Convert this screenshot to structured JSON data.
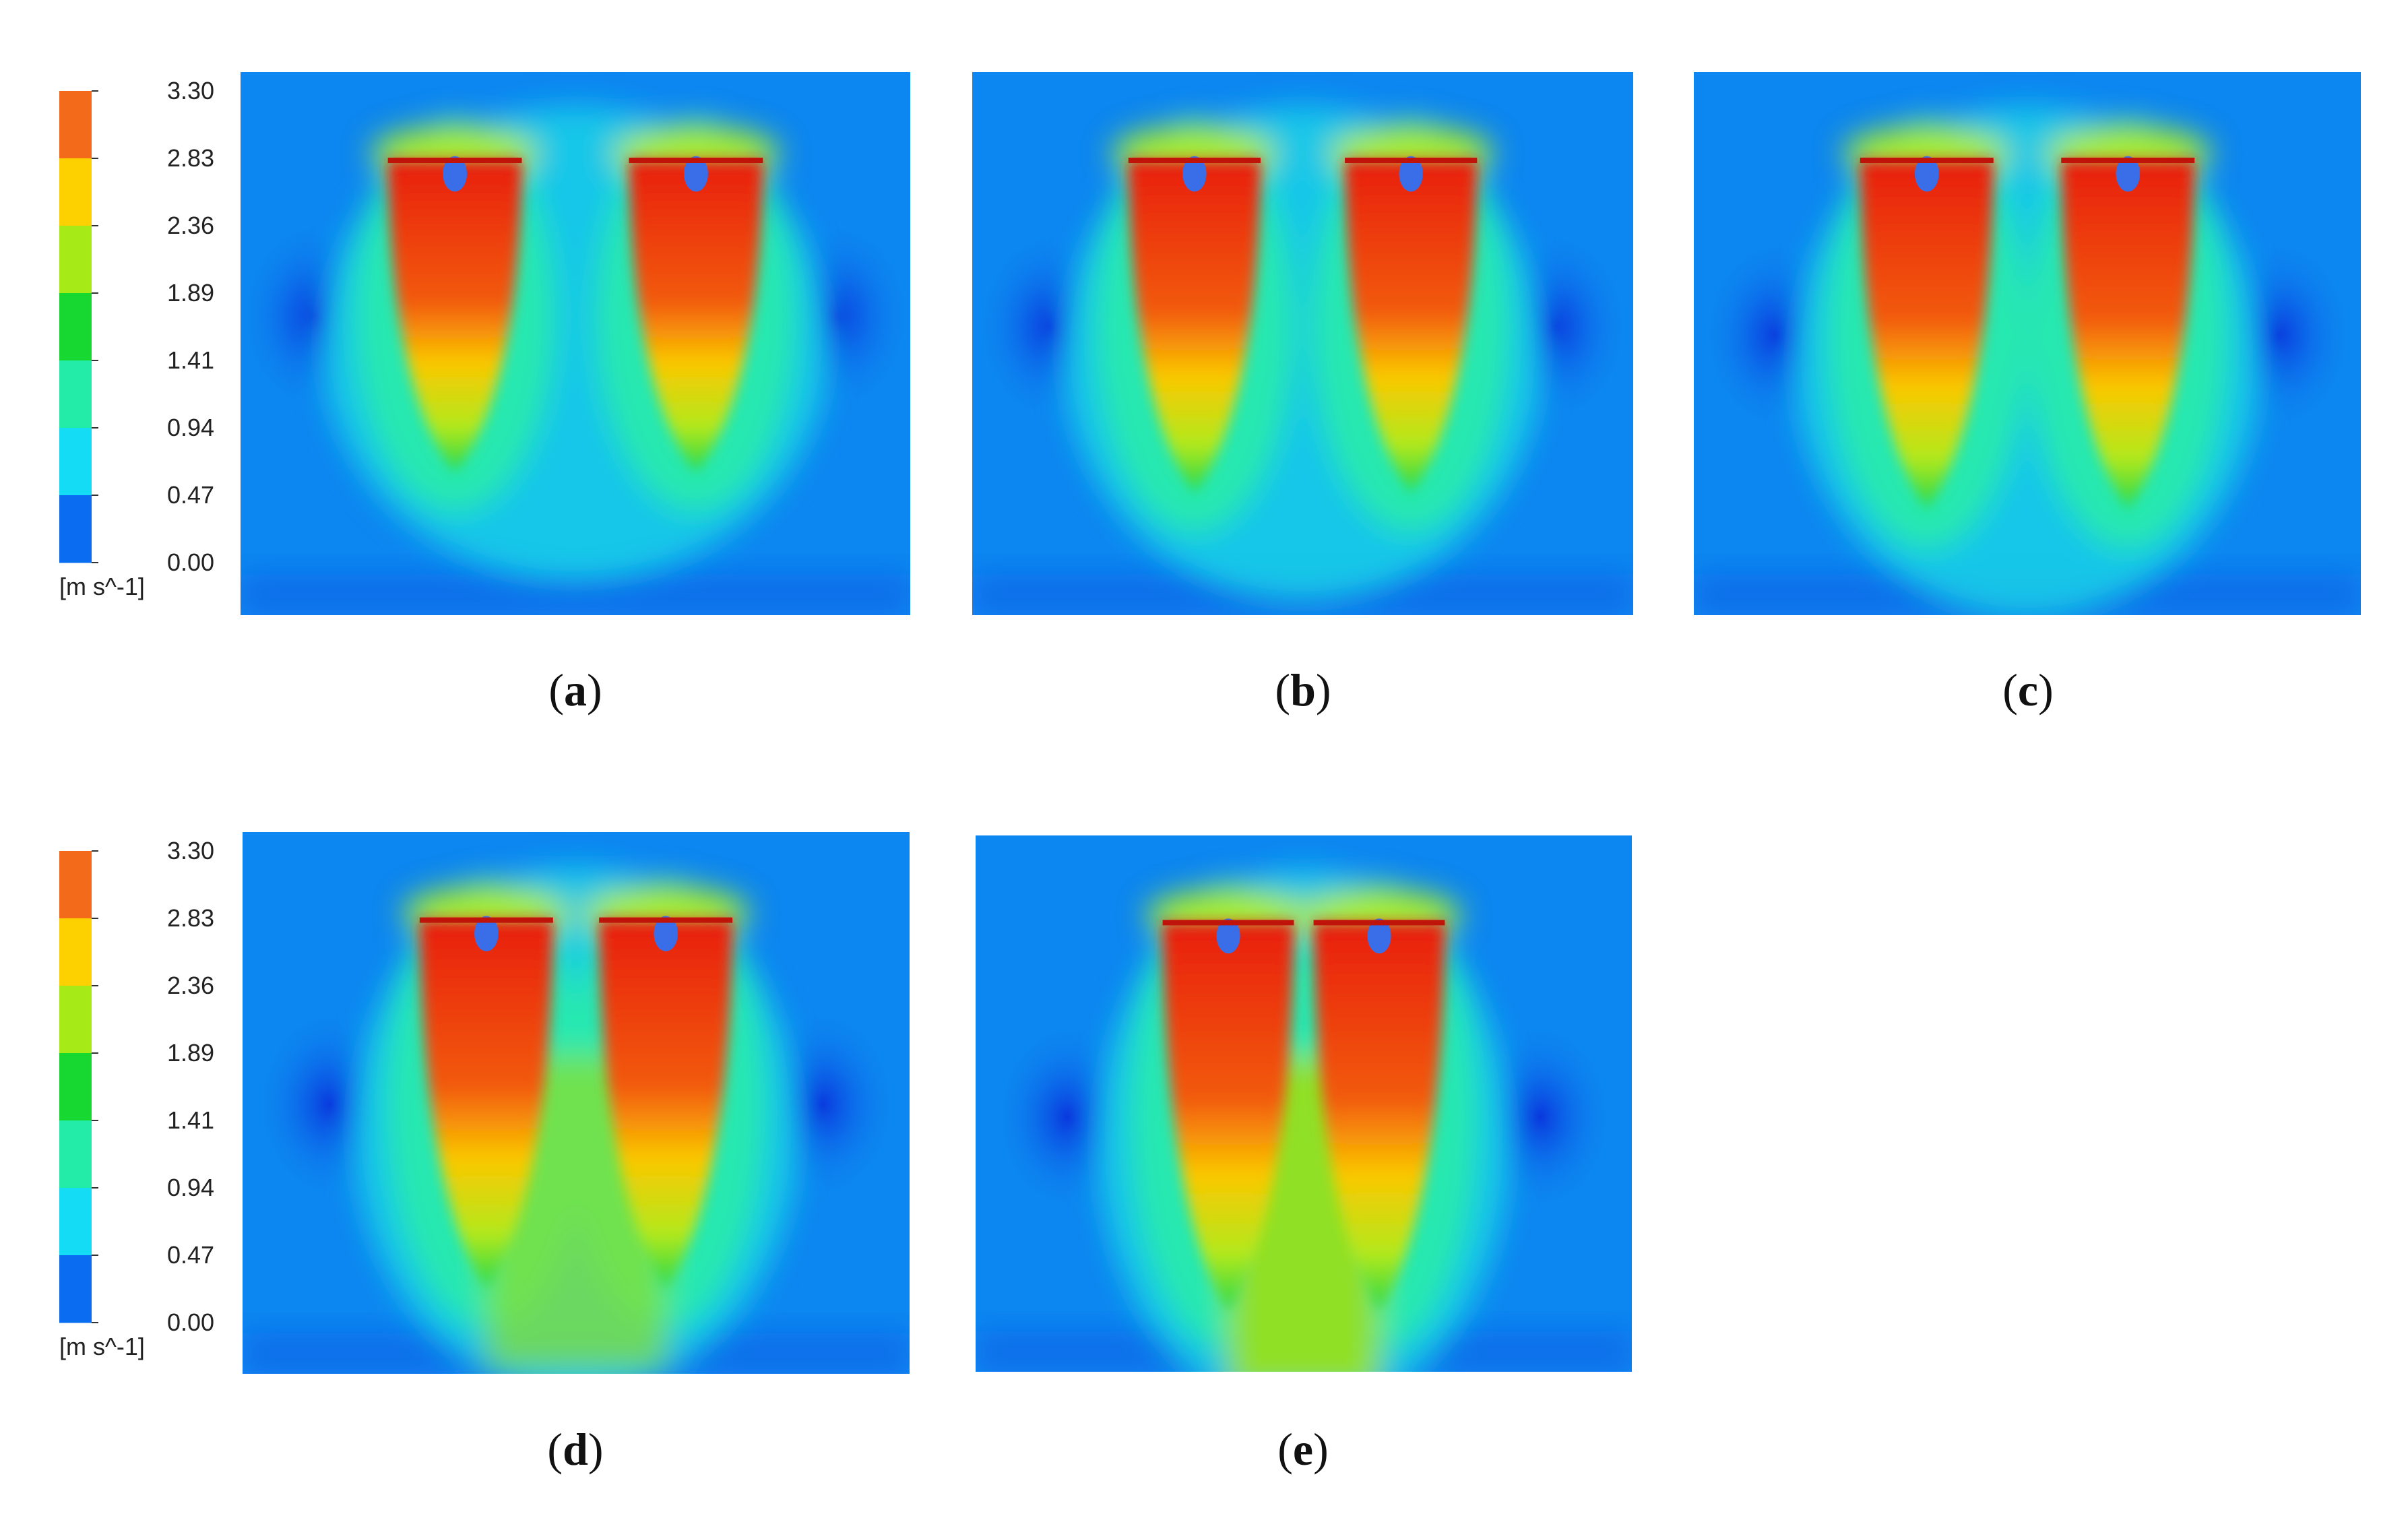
{
  "colorbar": {
    "ticks": [
      "3.30",
      "2.83",
      "2.36",
      "1.89",
      "1.41",
      "0.94",
      "0.47",
      "0.00"
    ],
    "unit": "[m s^-1]",
    "colors_top_to_bottom": [
      "#f26a1a",
      "#fdd000",
      "#a6ea18",
      "#16d830",
      "#22eca8",
      "#14dcf4",
      "#0a6cf0"
    ]
  },
  "panels": [
    {
      "letter": "a",
      "wake_merge": 0.0
    },
    {
      "letter": "b",
      "wake_merge": 0.25
    },
    {
      "letter": "c",
      "wake_merge": 0.45
    },
    {
      "letter": "d",
      "wake_merge": 0.7
    },
    {
      "letter": "e",
      "wake_merge": 1.0
    }
  ],
  "colors": {
    "field_background": "#0c86f0",
    "low_velocity_core": "#0a2edc",
    "jet_high": "#e81e0e",
    "jet_mid": "#fac800",
    "jet_low": "#22d848"
  }
}
